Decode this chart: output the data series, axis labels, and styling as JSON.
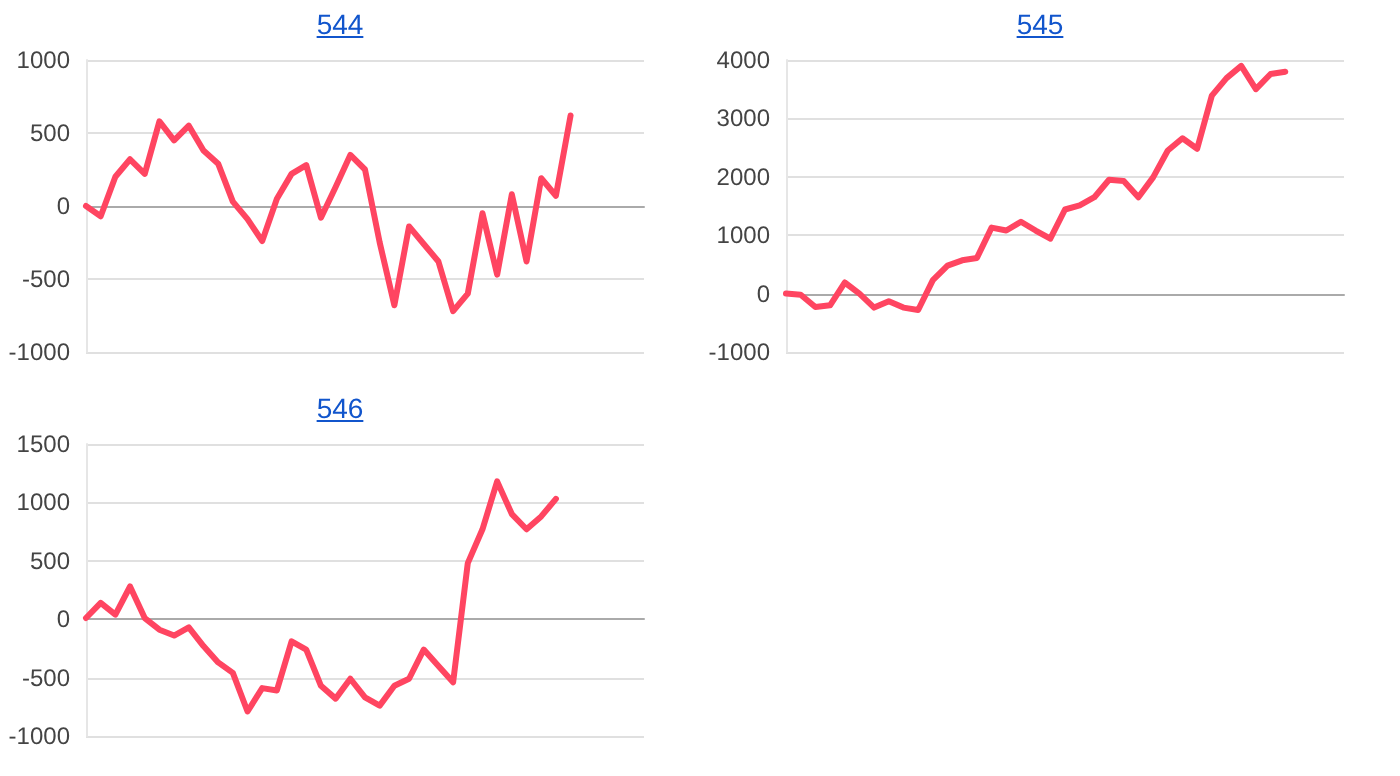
{
  "chart_data": [
    {
      "type": "line",
      "title": "544",
      "categories": [
        null,
        null,
        null,
        null,
        null,
        null,
        null,
        null,
        null,
        null,
        null,
        null,
        null,
        null,
        null,
        null,
        null,
        null,
        null,
        null,
        null,
        null,
        null,
        null,
        null,
        null,
        null,
        null,
        null,
        null,
        null,
        null,
        null,
        null,
        null,
        null,
        null,
        null,
        null
      ],
      "series": [
        {
          "color": "#ff4561",
          "values": [
            0,
            -70,
            200,
            320,
            220,
            580,
            450,
            550,
            380,
            290,
            30,
            -90,
            -240,
            50,
            220,
            280,
            -80,
            130,
            350,
            250,
            -250,
            -680,
            -140,
            -260,
            -380,
            -720,
            -600,
            -50,
            -470,
            80,
            -380,
            190,
            70,
            620,
            null,
            null,
            null,
            null,
            null
          ]
        }
      ],
      "ylim": [
        -1000,
        1000
      ],
      "yticks": [
        -1000,
        -500,
        0,
        500,
        1000
      ],
      "grid": "y",
      "tick_labels": "y",
      "line_style": "solid"
    },
    {
      "type": "line",
      "title": "545",
      "categories": [
        null,
        null,
        null,
        null,
        null,
        null,
        null,
        null,
        null,
        null,
        null,
        null,
        null,
        null,
        null,
        null,
        null,
        null,
        null,
        null,
        null,
        null,
        null,
        null,
        null,
        null,
        null,
        null,
        null,
        null,
        null,
        null,
        null,
        null,
        null,
        null,
        null,
        null,
        null
      ],
      "series": [
        {
          "color": "#ff4561",
          "values": [
            0,
            -20,
            -230,
            -200,
            190,
            0,
            -240,
            -130,
            -240,
            -280,
            230,
            480,
            570,
            610,
            1130,
            1080,
            1230,
            1080,
            940,
            1440,
            1510,
            1650,
            1950,
            1930,
            1650,
            1990,
            2450,
            2660,
            2480,
            3390,
            3690,
            3900,
            3500,
            3760,
            3800,
            null,
            null,
            null,
            null
          ]
        }
      ],
      "ylim": [
        -1000,
        4000
      ],
      "yticks": [
        -1000,
        0,
        1000,
        2000,
        3000,
        4000
      ],
      "grid": "y",
      "tick_labels": "y",
      "line_style": "solid"
    },
    {
      "type": "line",
      "title": "546",
      "categories": [
        null,
        null,
        null,
        null,
        null,
        null,
        null,
        null,
        null,
        null,
        null,
        null,
        null,
        null,
        null,
        null,
        null,
        null,
        null,
        null,
        null,
        null,
        null,
        null,
        null,
        null,
        null,
        null,
        null,
        null,
        null,
        null,
        null,
        null,
        null,
        null,
        null,
        null,
        null
      ],
      "series": [
        {
          "color": "#ff4561",
          "values": [
            10,
            140,
            40,
            280,
            10,
            -90,
            -140,
            -70,
            -230,
            -370,
            -460,
            -790,
            -590,
            -610,
            -190,
            -260,
            -570,
            -680,
            -510,
            -670,
            -740,
            -570,
            -510,
            -260,
            -400,
            -540,
            480,
            770,
            1180,
            900,
            770,
            880,
            1030,
            null,
            null,
            null,
            null,
            null,
            null
          ]
        }
      ],
      "ylim": [
        -1000,
        1500
      ],
      "yticks": [
        -1000,
        -500,
        0,
        500,
        1000,
        1500
      ],
      "grid": "y",
      "tick_labels": "y",
      "line_style": "solid"
    }
  ]
}
